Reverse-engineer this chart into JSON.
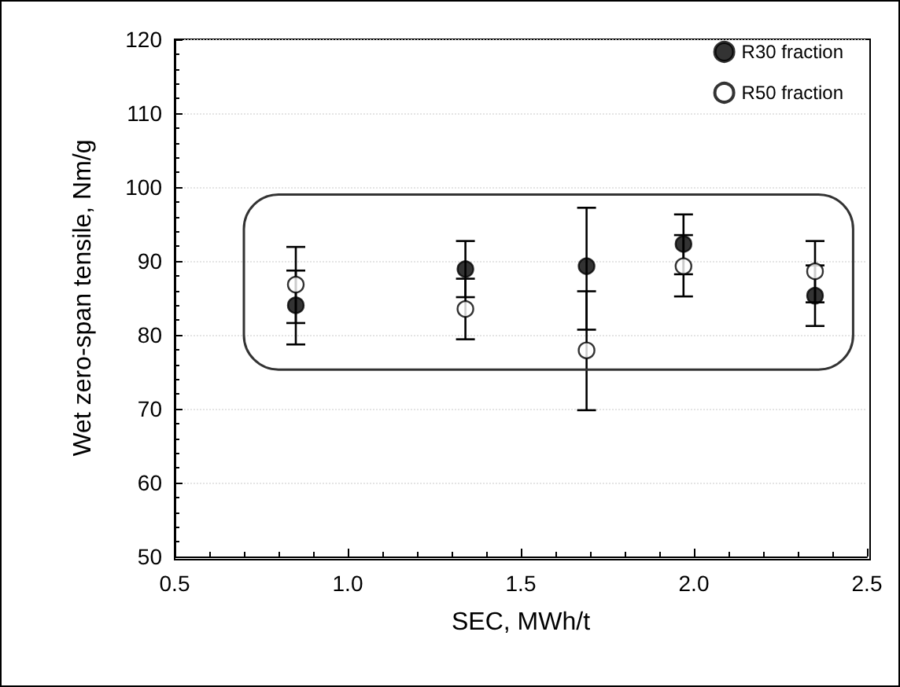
{
  "chart_data": {
    "type": "scatter",
    "xlabel": "SEC, MWh/t",
    "ylabel": "Wet zero-span tensile, Nm/g",
    "xlim": [
      0.5,
      2.5
    ],
    "xticks": [
      {
        "value": 0.5,
        "label": "0.5"
      },
      {
        "value": 1,
        "label": "1.0"
      },
      {
        "value": 1.5,
        "label": "1.5"
      },
      {
        "value": 2,
        "label": "2.0"
      },
      {
        "value": 2.5,
        "label": "2.5"
      }
    ],
    "ylim": [
      50,
      120
    ],
    "yticks": [
      50,
      60,
      70,
      80,
      90,
      100,
      110,
      120
    ],
    "grid": "y",
    "legend": "top right",
    "marker": "circle",
    "series": [
      {
        "name": "R30 fraction",
        "color": "#000000",
        "x": [
          0.85,
          1.34,
          1.69,
          1.97,
          2.35
        ],
        "values": [
          84.0,
          88.9,
          89.3,
          92.3,
          85.3
        ],
        "errors": [
          [
            78.7,
            88.7
          ],
          [
            85.1,
            92.7
          ],
          [
            80.7,
            97.2
          ],
          [
            88.2,
            96.3
          ],
          [
            81.2,
            89.4
          ]
        ]
      },
      {
        "name": "R50 fraction",
        "color": "#ffffff",
        "x": [
          0.85,
          1.34,
          1.69,
          1.97,
          2.35
        ],
        "values": [
          86.8,
          83.5,
          77.9,
          89.3,
          88.6
        ],
        "errors": [
          [
            81.6,
            91.9
          ],
          [
            79.4,
            87.6
          ],
          [
            69.8,
            85.9
          ],
          [
            85.2,
            93.5
          ],
          [
            84.4,
            92.7
          ]
        ]
      }
    ]
  }
}
